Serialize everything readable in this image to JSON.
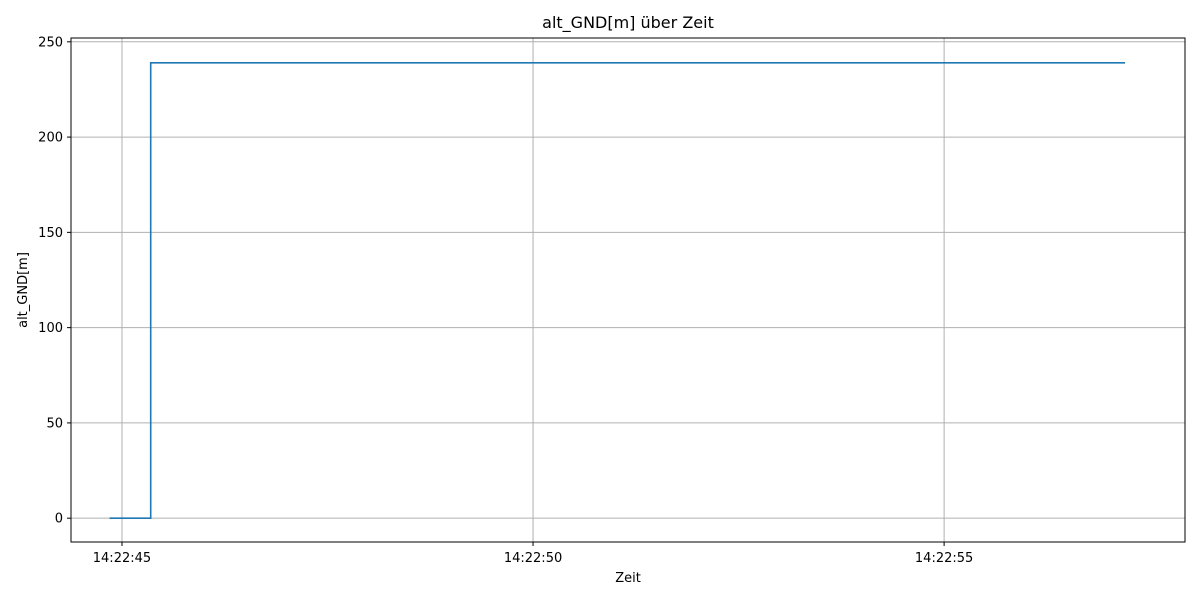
{
  "chart_data": {
    "type": "line",
    "title": "alt_GND[m] über Zeit",
    "xlabel": "Zeit",
    "ylabel": "alt_GND[m]",
    "x_ticks": [
      "14:22:45",
      "14:22:50",
      "14:22:55"
    ],
    "x_tick_values": [
      45.0,
      50.0,
      55.0
    ],
    "y_ticks": [
      0,
      50,
      100,
      150,
      200,
      250
    ],
    "xlim": [
      44.38,
      57.93
    ],
    "ylim": [
      -12.5,
      252
    ],
    "grid": true,
    "series": [
      {
        "color": "#1f77b4",
        "step": true,
        "x": [
          44.85,
          45.35,
          45.35,
          57.2
        ],
        "y": [
          0,
          0,
          239,
          239
        ]
      }
    ]
  }
}
